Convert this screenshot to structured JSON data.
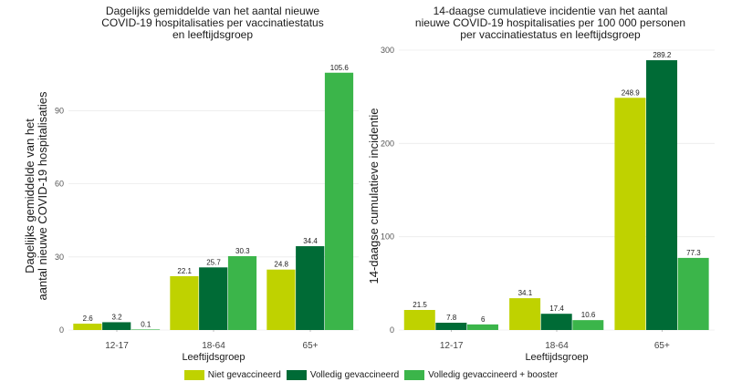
{
  "colors": {
    "Niet gevaccineerd": "#bfd200",
    "Volledig gevaccineerd": "#006b36",
    "Volledig gevaccineerd + booster": "#3bb54a",
    "grid": "#ebebeb",
    "text": "#1a1a1a"
  },
  "legend": {
    "items": [
      "Niet gevaccineerd",
      "Volledig gevaccineerd",
      "Volledig gevaccineerd + booster"
    ]
  },
  "chart_data": [
    {
      "type": "bar",
      "title_lines": [
        "Dagelijks gemiddelde van het aantal nieuwe",
        "COVID-19 hospitalisaties per vaccinatiestatus",
        "en leeftijdsgroep"
      ],
      "ylabel_lines": [
        "Dagelijks gemiddelde van het",
        "aantal nieuwe COVID-19 hospitalisaties"
      ],
      "xlabel": "Leeftijdsgroep",
      "categories": [
        "12-17",
        "18-64",
        "65+"
      ],
      "yticks": [
        "0",
        "30",
        "60",
        "90"
      ],
      "ylim": [
        0,
        110
      ],
      "grid": true,
      "series": [
        {
          "name": "Niet gevaccineerd",
          "values": [
            2.6,
            22.1,
            24.8
          ],
          "labels": [
            "2.6",
            "22.1",
            "24.8"
          ]
        },
        {
          "name": "Volledig gevaccineerd",
          "values": [
            3.2,
            25.7,
            34.4
          ],
          "labels": [
            "3.2",
            "25.7",
            "34.4"
          ]
        },
        {
          "name": "Volledig gevaccineerd + booster",
          "values": [
            0.1,
            30.3,
            105.6
          ],
          "labels": [
            "0.1",
            "30.3",
            "105.6"
          ]
        }
      ]
    },
    {
      "type": "bar",
      "title_lines": [
        "14-daagse cumulatieve incidentie van het aantal",
        "nieuwe COVID-19 hospitalisaties per 100 000 personen",
        "per vaccinatiestatus en leeftijdsgroep"
      ],
      "ylabel_lines": [
        "14-daagse cumulatieve incidentie"
      ],
      "xlabel": "Leeftijdsgroep",
      "categories": [
        "12-17",
        "18-64",
        "65+"
      ],
      "yticks": [
        "0",
        "100",
        "200",
        "300"
      ],
      "ylim": [
        0,
        300
      ],
      "grid": true,
      "series": [
        {
          "name": "Niet gevaccineerd",
          "values": [
            21.5,
            34.1,
            248.9
          ],
          "labels": [
            "21.5",
            "34.1",
            "248.9"
          ]
        },
        {
          "name": "Volledig gevaccineerd",
          "values": [
            7.8,
            17.4,
            289.2
          ],
          "labels": [
            "7.8",
            "17.4",
            "289.2"
          ]
        },
        {
          "name": "Volledig gevaccineerd + booster",
          "values": [
            6,
            10.6,
            77.3
          ],
          "labels": [
            "6",
            "10.6",
            "77.3"
          ]
        }
      ]
    }
  ]
}
